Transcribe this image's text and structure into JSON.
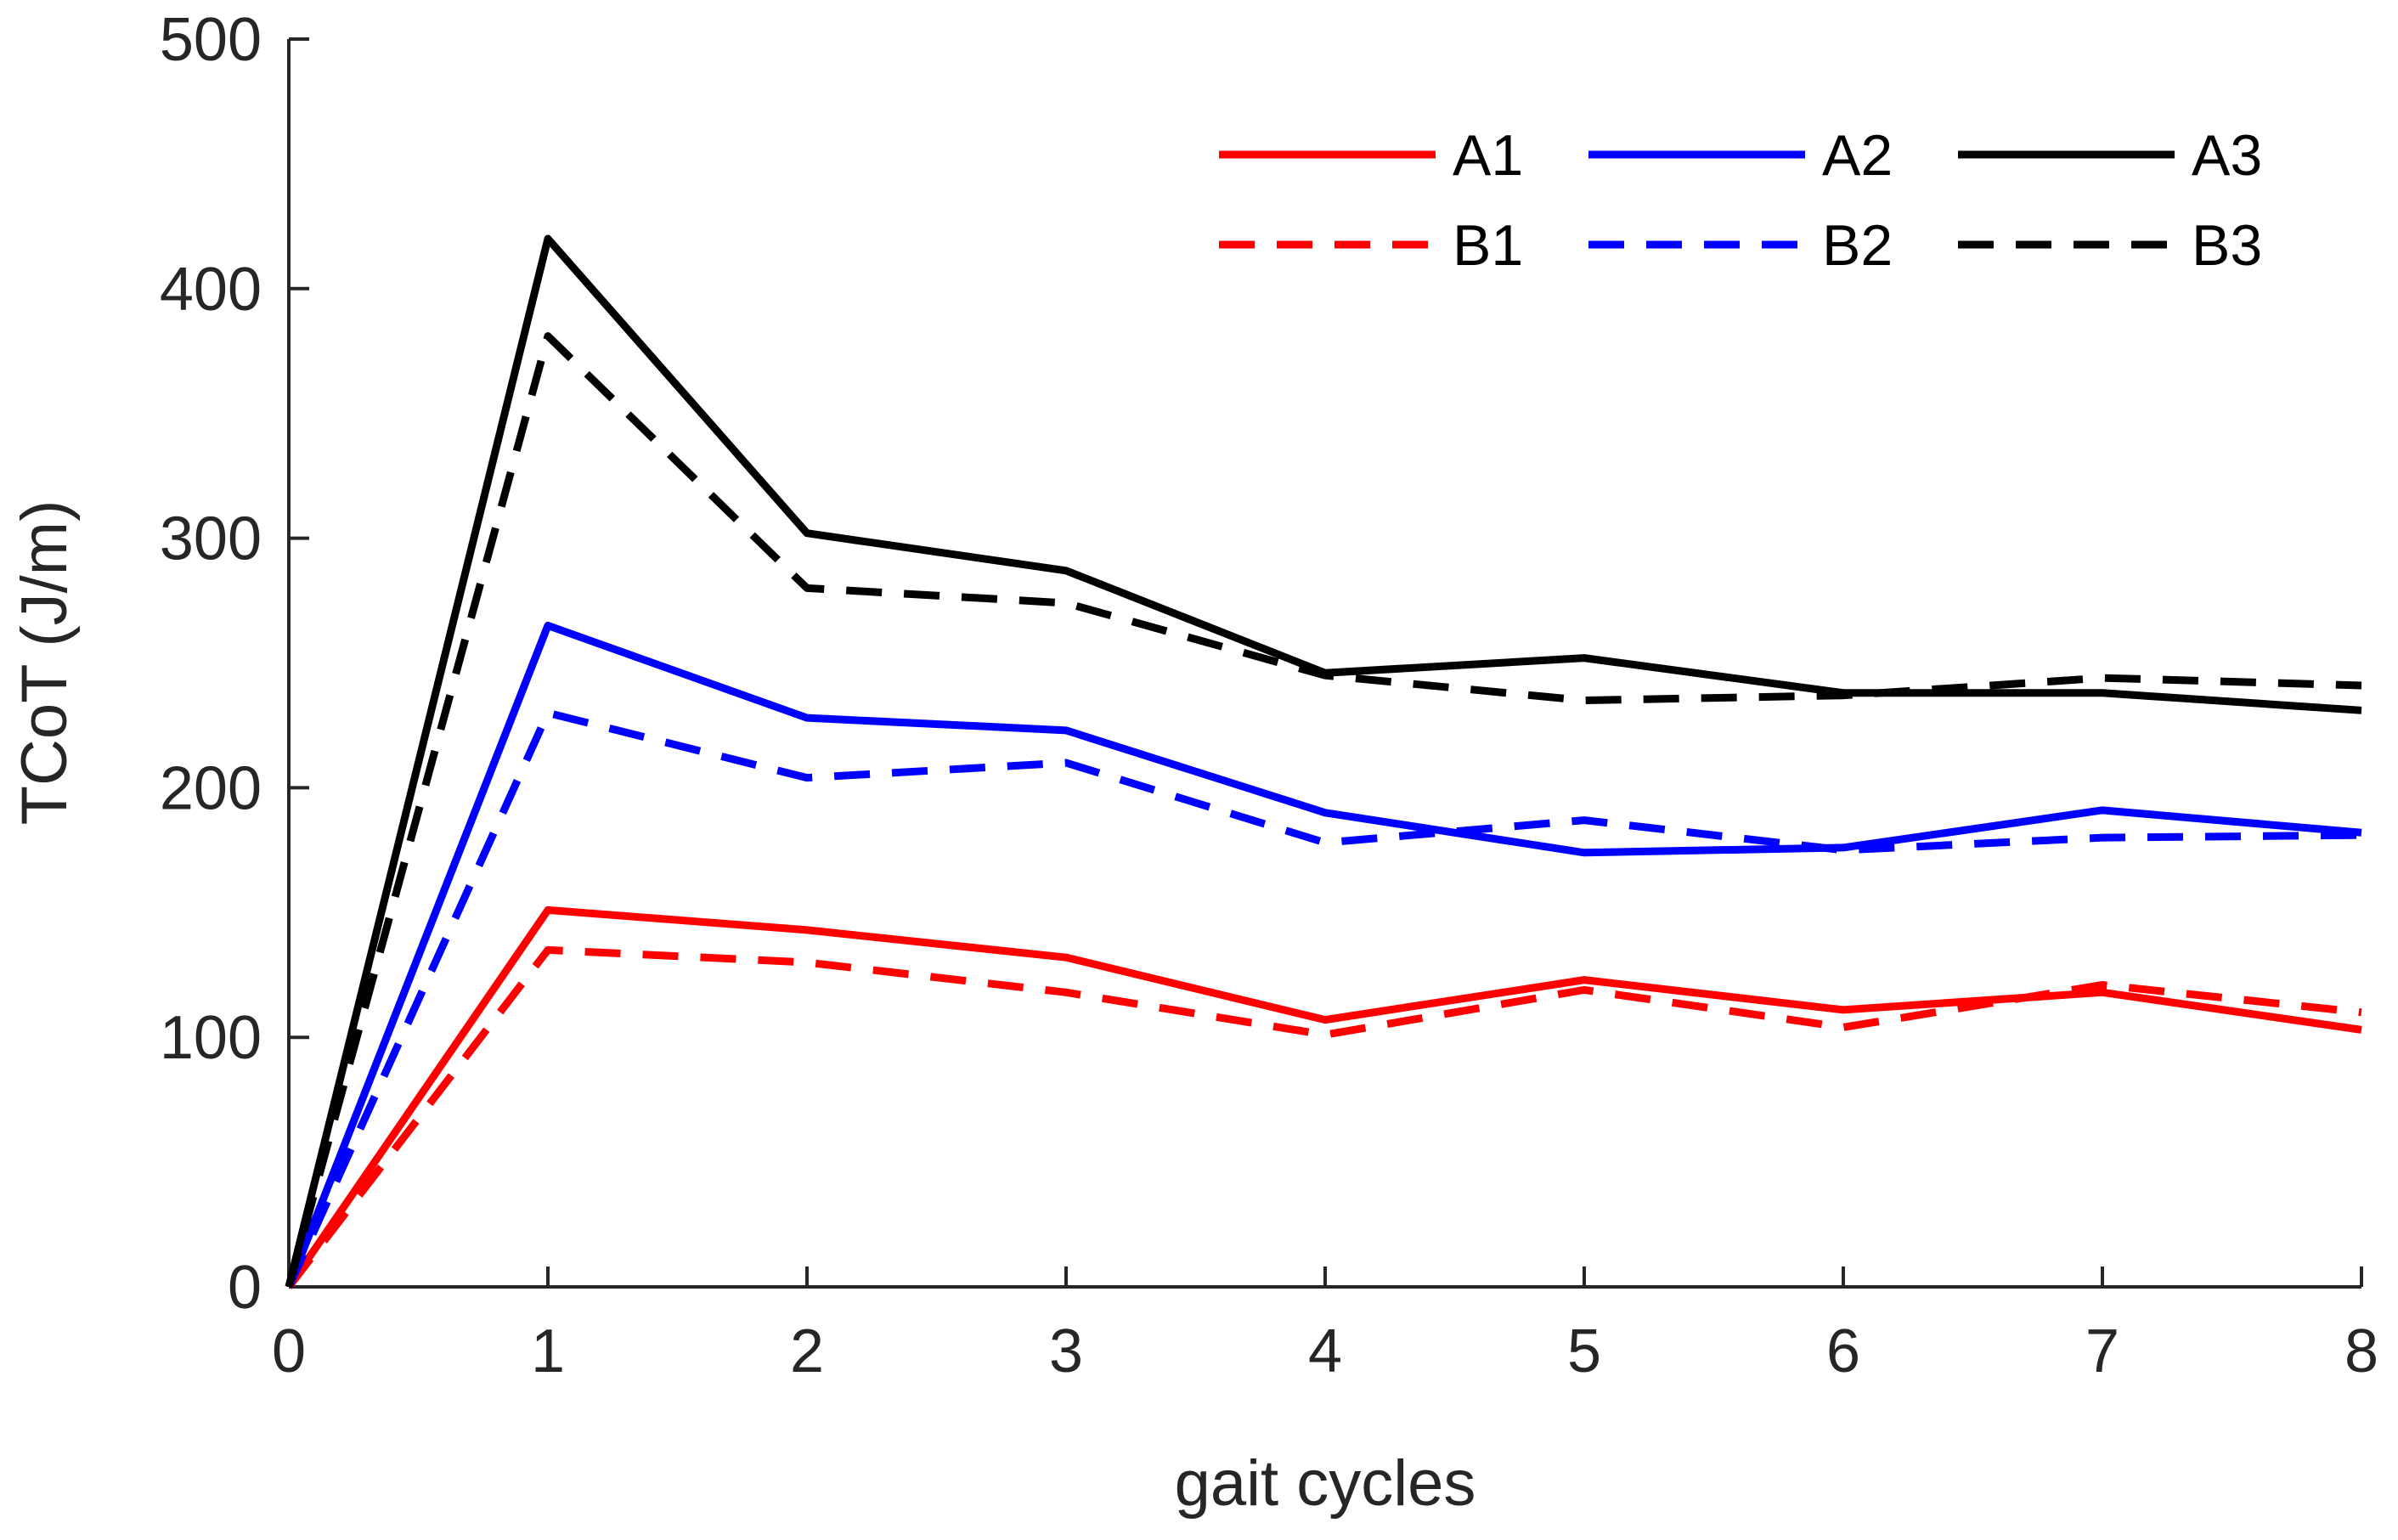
{
  "chart_data": {
    "type": "line",
    "title": "",
    "xlabel": "gait cycles",
    "ylabel": "TCoT (J/m)",
    "xlim": [
      0,
      8
    ],
    "ylim": [
      0,
      500
    ],
    "xticks": [
      0,
      1,
      2,
      3,
      4,
      5,
      6,
      7,
      8
    ],
    "yticks": [
      0,
      100,
      200,
      300,
      400,
      500
    ],
    "grid": false,
    "legend_position": "top-right",
    "x": [
      0,
      1,
      2,
      3,
      4,
      5,
      6,
      7,
      8
    ],
    "series": [
      {
        "name": "A1",
        "color": "#ff0000",
        "style": "solid",
        "values": [
          0,
          151,
          143,
          132,
          107,
          123,
          111,
          118,
          103
        ]
      },
      {
        "name": "A2",
        "color": "#0000ff",
        "style": "solid",
        "values": [
          0,
          265,
          228,
          223,
          190,
          174,
          176,
          191,
          182
        ]
      },
      {
        "name": "A3",
        "color": "#000000",
        "style": "solid",
        "values": [
          0,
          420,
          302,
          287,
          246,
          252,
          238,
          238,
          231
        ]
      },
      {
        "name": "B1",
        "color": "#ff0000",
        "style": "dashed",
        "values": [
          0,
          135,
          130,
          118,
          101,
          119,
          104,
          121,
          110
        ]
      },
      {
        "name": "B2",
        "color": "#0000ff",
        "style": "dashed",
        "values": [
          0,
          230,
          204,
          210,
          178,
          187,
          175,
          180,
          181
        ]
      },
      {
        "name": "B3",
        "color": "#000000",
        "style": "dashed",
        "values": [
          0,
          381,
          280,
          274,
          245,
          235,
          237,
          244,
          241
        ]
      }
    ]
  }
}
